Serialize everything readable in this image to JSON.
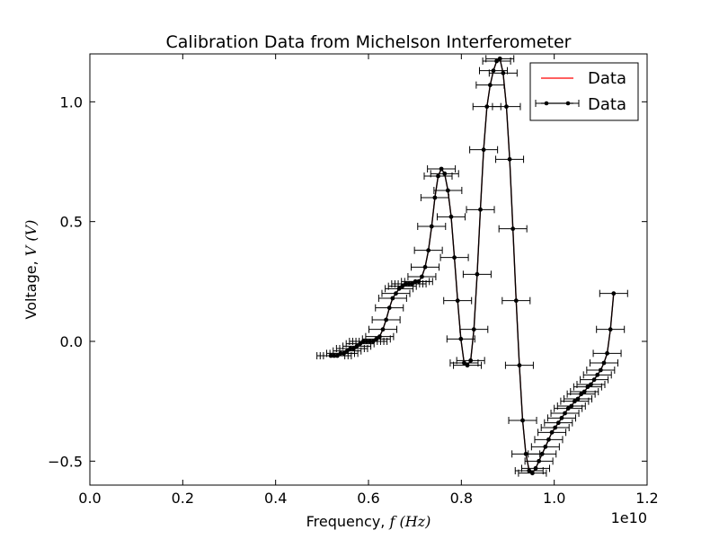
{
  "chart_data": {
    "type": "line",
    "title": "Calibration Data from Michelson Interferometer",
    "xlabel_prefix": "Frequency, ",
    "xlabel_math": "f (Hz)",
    "ylabel_prefix": "Voltage, ",
    "ylabel_math": "V (V)",
    "x_offset_label": "1e10",
    "xlim": [
      0.0,
      1.2
    ],
    "ylim": [
      -0.6,
      1.2
    ],
    "x_scale": 10000000000.0,
    "xticks": [
      {
        "value": 0.0,
        "label": "0.0"
      },
      {
        "value": 0.2,
        "label": "0.2"
      },
      {
        "value": 0.4,
        "label": "0.4"
      },
      {
        "value": 0.6,
        "label": "0.6"
      },
      {
        "value": 0.8,
        "label": "0.8"
      },
      {
        "value": 1.0,
        "label": "1.0"
      },
      {
        "value": 1.2,
        "label": "1.2"
      }
    ],
    "yticks": [
      {
        "value": -0.5,
        "label": "−0.5"
      },
      {
        "value": 0.0,
        "label": "0.0"
      },
      {
        "value": 0.5,
        "label": "0.5"
      },
      {
        "value": 1.0,
        "label": "1.0"
      }
    ],
    "grid": false,
    "legend_position": "top-right",
    "xerr": 0.03,
    "series": [
      {
        "name": "Data",
        "kind": "line",
        "color": "#ff0000"
      },
      {
        "name": "Data",
        "kind": "errorbar",
        "color": "#000000"
      }
    ],
    "x": [
      0.519,
      0.526,
      0.533,
      0.54,
      0.547,
      0.554,
      0.561,
      0.568,
      0.575,
      0.582,
      0.589,
      0.596,
      0.603,
      0.61,
      0.617,
      0.624,
      0.631,
      0.638,
      0.645,
      0.652,
      0.659,
      0.666,
      0.673,
      0.68,
      0.687,
      0.694,
      0.701,
      0.708,
      0.715,
      0.722,
      0.729,
      0.736,
      0.743,
      0.75,
      0.757,
      0.764,
      0.771,
      0.778,
      0.785,
      0.792,
      0.799,
      0.806,
      0.813,
      0.82,
      0.827,
      0.834,
      0.841,
      0.848,
      0.855,
      0.862,
      0.869,
      0.876,
      0.883,
      0.89,
      0.897,
      0.904,
      0.911,
      0.918,
      0.925,
      0.932,
      0.939,
      0.946,
      0.953,
      0.96,
      0.967,
      0.974,
      0.981,
      0.988,
      0.995,
      1.002,
      1.009,
      1.016,
      1.023,
      1.03,
      1.037,
      1.044,
      1.051,
      1.058,
      1.065,
      1.072,
      1.079,
      1.086,
      1.093,
      1.1,
      1.107,
      1.114,
      1.121,
      1.128
    ],
    "y": [
      -0.06,
      -0.06,
      -0.06,
      -0.05,
      -0.05,
      -0.04,
      -0.03,
      -0.03,
      -0.02,
      -0.01,
      0.0,
      0.0,
      0.0,
      0.0,
      0.01,
      0.02,
      0.05,
      0.09,
      0.14,
      0.18,
      0.2,
      0.22,
      0.23,
      0.24,
      0.24,
      0.24,
      0.25,
      0.25,
      0.27,
      0.31,
      0.38,
      0.48,
      0.6,
      0.69,
      0.72,
      0.7,
      0.63,
      0.52,
      0.35,
      0.17,
      0.01,
      -0.09,
      -0.1,
      -0.08,
      0.05,
      0.28,
      0.55,
      0.8,
      0.98,
      1.07,
      1.13,
      1.17,
      1.18,
      1.12,
      0.98,
      0.76,
      0.47,
      0.17,
      -0.1,
      -0.33,
      -0.47,
      -0.54,
      -0.55,
      -0.53,
      -0.5,
      -0.47,
      -0.44,
      -0.41,
      -0.38,
      -0.36,
      -0.34,
      -0.32,
      -0.3,
      -0.28,
      -0.27,
      -0.25,
      -0.24,
      -0.22,
      -0.21,
      -0.19,
      -0.18,
      -0.16,
      -0.14,
      -0.12,
      -0.09,
      -0.05,
      0.05,
      0.2
    ]
  }
}
